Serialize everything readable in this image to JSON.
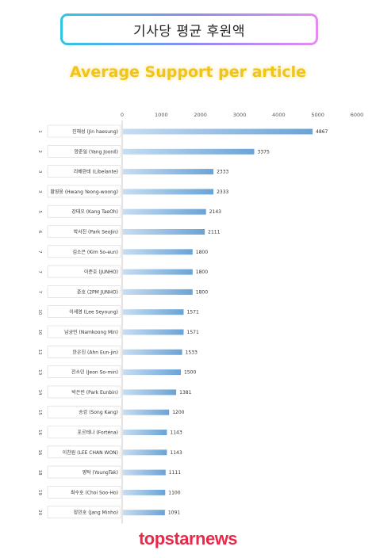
{
  "header": {
    "title": "기사당 평균 후원액",
    "subtitle": "Average Support per article"
  },
  "footer": {
    "logo_text": "topstarnews"
  },
  "colors": {
    "bar": "#6aa3d6",
    "bar_light": "#c7ddf2",
    "logo": "#e8294a",
    "subtitle": "#f0c419"
  },
  "chart_data": {
    "type": "bar",
    "orientation": "horizontal",
    "title": "Average Support per article",
    "xlim": [
      0,
      6000
    ],
    "xticks": [
      0,
      1000,
      2000,
      3000,
      4000,
      5000,
      6000
    ],
    "rows": [
      {
        "rank": "1",
        "label": "진해성 (Jin haesung)",
        "value": 4867
      },
      {
        "rank": "2",
        "label": "양준일 (Yang JoonIl)",
        "value": 3375
      },
      {
        "rank": "3",
        "label": "리베란테 (Libelante)",
        "value": 2333
      },
      {
        "rank": "3",
        "label": "황영웅 (Hwang Yeong-woong)",
        "value": 2333
      },
      {
        "rank": "5",
        "label": "강태오 (Kang TaeOh)",
        "value": 2143
      },
      {
        "rank": "6",
        "label": "박서진 (Park SeoJin)",
        "value": 2111
      },
      {
        "rank": "7",
        "label": "김소은 (Kim So-eun)",
        "value": 1800
      },
      {
        "rank": "7",
        "label": "이준호 (JUNHO)",
        "value": 1800
      },
      {
        "rank": "7",
        "label": "준호 (2PM JUNHO)",
        "value": 1800
      },
      {
        "rank": "10",
        "label": "이세영 (Lee Seyoung)",
        "value": 1571
      },
      {
        "rank": "10",
        "label": "남궁민 (Namkoong Min)",
        "value": 1571
      },
      {
        "rank": "12",
        "label": "안은진 (Ahn Eun-jin)",
        "value": 1533
      },
      {
        "rank": "13",
        "label": "전소민 (Jeon So-min)",
        "value": 1500
      },
      {
        "rank": "14",
        "label": "박은빈 (Park Eunbin)",
        "value": 1381
      },
      {
        "rank": "15",
        "label": "송강 (Song Kang)",
        "value": 1200
      },
      {
        "rank": "16",
        "label": "포르테나 (Forténa)",
        "value": 1143
      },
      {
        "rank": "16",
        "label": "이찬원 (LEE CHAN WON)",
        "value": 1143
      },
      {
        "rank": "18",
        "label": "영탁 (YoungTak)",
        "value": 1111
      },
      {
        "rank": "19",
        "label": "최수호 (Choi Soo-Ho)",
        "value": 1100
      },
      {
        "rank": "20",
        "label": "장민호 (Jang Minho)",
        "value": 1091
      }
    ]
  }
}
